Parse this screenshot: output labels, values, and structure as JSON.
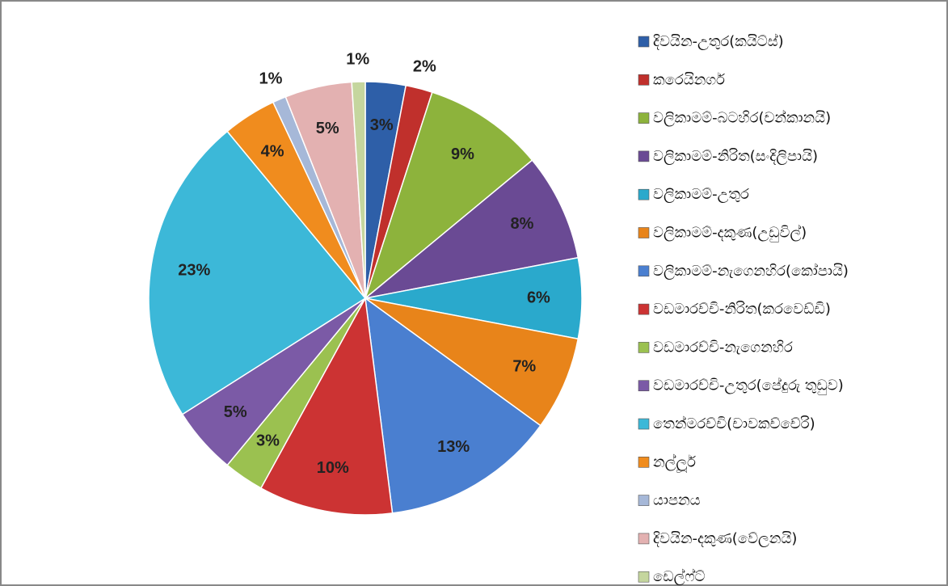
{
  "chart_data": {
    "type": "pie",
    "categories": [
      "දිවයින-උතුර(කයිට්ස්)",
      "කරෙයිනගර්",
      "වලිකාමම්-බටහිර(චන්කානයි)",
      "වලිකාමම්-නිරිත(සංදිලිපායි)",
      "වලිකාමම්-උතුර",
      "වලිකාමම්-දකුණ(උඩුවිල්)",
      "වලිකාමම්-නැගෙනහිර(කෝපායි)",
      "වඩමාරච්චි-නිරිත(කරවෙඩ්ඩි)",
      "වඩමාරච්චි-නැගෙනහිර",
      "වඩමාරච්චි-උතුර(පේදුරු තුඩුව)",
      "තෙන්මරච්චි(චාවකච්චේරි)",
      "නල්ලූර්",
      "යාපනය",
      "දිවයින-දකුණ(වේලනයි)",
      "ඩෙල්ෆ්ට්"
    ],
    "values": [
      3,
      2,
      9,
      8,
      6,
      7,
      13,
      10,
      3,
      5,
      23,
      4,
      1,
      5,
      1
    ],
    "value_labels": [
      "3%",
      "2%",
      "9%",
      "8%",
      "6%",
      "7%",
      "13%",
      "10%",
      "3%",
      "5%",
      "23%",
      "4%",
      "1%",
      "5%",
      "1%"
    ],
    "colors": [
      "#2e5fa8",
      "#c0302c",
      "#8db33c",
      "#6a4a94",
      "#2aa9cc",
      "#e8841a",
      "#4a7fd0",
      "#cc3333",
      "#9bc150",
      "#7b5aa6",
      "#3cb8d8",
      "#f08c1e",
      "#a6b8d8",
      "#e3b1b1",
      "#c5d69e"
    ],
    "legend": "right"
  }
}
